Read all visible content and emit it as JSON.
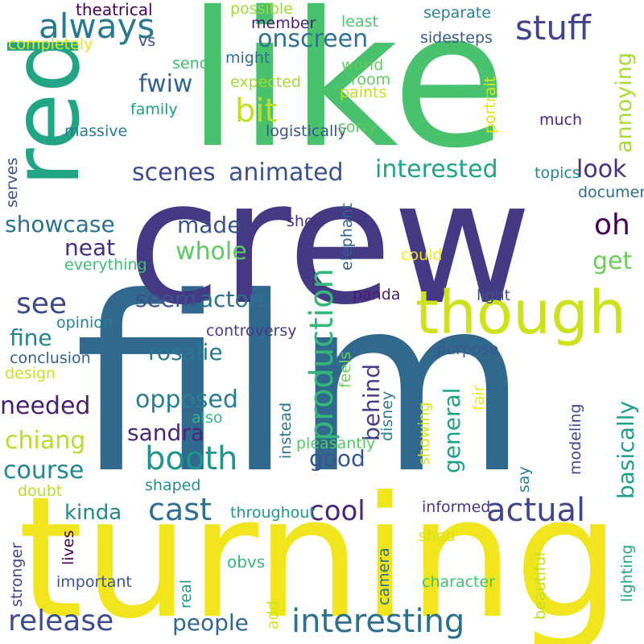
{
  "words": [
    {
      "text": "film",
      "color": "#31688e"
    },
    {
      "text": "crew",
      "color": "#443983"
    },
    {
      "text": "like",
      "color": "#4ac16d"
    },
    {
      "text": "turning",
      "color": "#f1e51d"
    },
    {
      "text": "red",
      "color": "#21a585"
    },
    {
      "text": "though",
      "color": "#cde11d"
    },
    {
      "text": "stuff",
      "color": "#414487"
    },
    {
      "text": "always",
      "color": "#2a788e"
    },
    {
      "text": "onscreen",
      "color": "#2c728e"
    },
    {
      "text": "bit",
      "color": "#bddf26"
    },
    {
      "text": "fwiw",
      "color": "#32648e"
    },
    {
      "text": "annoying",
      "color": "#a8db34"
    },
    {
      "text": "interested",
      "color": "#20a486"
    },
    {
      "text": "animated",
      "color": "#3b528b"
    },
    {
      "text": "scenes",
      "color": "#3e4a89"
    },
    {
      "text": "look",
      "color": "#46327e"
    },
    {
      "text": "oh",
      "color": "#440154"
    },
    {
      "text": "made",
      "color": "#3b528b"
    },
    {
      "text": "whole",
      "color": "#5ec962"
    },
    {
      "text": "showcase",
      "color": "#2c728e"
    },
    {
      "text": "neat",
      "color": "#472d7b"
    },
    {
      "text": "see",
      "color": "#3e4989"
    },
    {
      "text": "production",
      "color": "#35b779"
    },
    {
      "text": "get",
      "color": "#6ccd5a"
    },
    {
      "text": "seem",
      "color": "#3b528b"
    },
    {
      "text": "actors",
      "color": "#2c728e"
    },
    {
      "text": "fine",
      "color": "#26828e"
    },
    {
      "text": "rosalie",
      "color": "#2a788e"
    },
    {
      "text": "behind",
      "color": "#433e85"
    },
    {
      "text": "general",
      "color": "#1fa088"
    },
    {
      "text": "basically",
      "color": "#1f9e89"
    },
    {
      "text": "needed",
      "color": "#481f70"
    },
    {
      "text": "opposed",
      "color": "#287d8e"
    },
    {
      "text": "chiang",
      "color": "#b5de2b"
    },
    {
      "text": "sandra",
      "color": "#482576"
    },
    {
      "text": "booth",
      "color": "#1f958b"
    },
    {
      "text": "good",
      "color": "#39558c"
    },
    {
      "text": "course",
      "color": "#24878e"
    },
    {
      "text": "cast",
      "color": "#2e6e8e"
    },
    {
      "text": "cool",
      "color": "#482677"
    },
    {
      "text": "actual",
      "color": "#3f4788"
    },
    {
      "text": "kinda",
      "color": "#25848e"
    },
    {
      "text": "release",
      "color": "#3e4c8a"
    },
    {
      "text": "people",
      "color": "#31688e"
    },
    {
      "text": "interesting",
      "color": "#2d708e"
    },
    {
      "text": "theatrical",
      "color": "#450457"
    },
    {
      "text": "possible",
      "color": "#a0da39"
    },
    {
      "text": "member",
      "color": "#482173"
    },
    {
      "text": "least",
      "color": "#4ec36b"
    },
    {
      "text": "separate",
      "color": "#25838e"
    },
    {
      "text": "completely",
      "color": "#e5e419"
    },
    {
      "text": "vs",
      "color": "#3d4e8a"
    },
    {
      "text": "sidesteps",
      "color": "#375b8d"
    },
    {
      "text": "send",
      "color": "#42be71"
    },
    {
      "text": "might",
      "color": "#2d718e"
    },
    {
      "text": "world",
      "color": "#65cb5e"
    },
    {
      "text": "expected",
      "color": "#a2da37"
    },
    {
      "text": "room",
      "color": "#5cc863"
    },
    {
      "text": "paints",
      "color": "#c2df23"
    },
    {
      "text": "family",
      "color": "#1f9a8a"
    },
    {
      "text": "much",
      "color": "#482979"
    },
    {
      "text": "massive",
      "color": "#287d8e"
    },
    {
      "text": "logistically",
      "color": "#3a548c"
    },
    {
      "text": "sorry",
      "color": "#5ac864"
    },
    {
      "text": "topics",
      "color": "#25858e"
    },
    {
      "text": "documentary",
      "color": "#2e6e8e"
    },
    {
      "text": "show",
      "color": "#46327e"
    },
    {
      "text": "could",
      "color": "#f4e61e"
    },
    {
      "text": "everything",
      "color": "#3dbc74"
    },
    {
      "text": "light",
      "color": "#3b528b"
    },
    {
      "text": "panda",
      "color": "#481b6d"
    },
    {
      "text": "opinion",
      "color": "#26828e"
    },
    {
      "text": "controversy",
      "color": "#433d84"
    },
    {
      "text": "purpose",
      "color": "#38588c"
    },
    {
      "text": "conclusion",
      "color": "#34618d"
    },
    {
      "text": "design",
      "color": "#c8e020"
    },
    {
      "text": "also",
      "color": "#35b779"
    },
    {
      "text": "pleasantly",
      "color": "#56c667"
    },
    {
      "text": "doubt",
      "color": "#b8de29"
    },
    {
      "text": "shaped",
      "color": "#228d8d"
    },
    {
      "text": "throughout",
      "color": "#1f998a"
    },
    {
      "text": "informed",
      "color": "#453882"
    },
    {
      "text": "shed",
      "color": "#d8e219"
    },
    {
      "text": "obvs",
      "color": "#37b878"
    },
    {
      "text": "important",
      "color": "#3a538b"
    },
    {
      "text": "character",
      "color": "#43bf71"
    },
    {
      "text": "serves",
      "color": "#3e4a89"
    },
    {
      "text": "portrait",
      "color": "#dfe318"
    },
    {
      "text": "elephant",
      "color": "#33628d"
    },
    {
      "text": "feels",
      "color": "#6ece58"
    },
    {
      "text": "instead",
      "color": "#2a768e"
    },
    {
      "text": "disney",
      "color": "#297a8e"
    },
    {
      "text": "fair",
      "color": "#f1e51d"
    },
    {
      "text": "say",
      "color": "#26828e"
    },
    {
      "text": "showing",
      "color": "#d5e21a"
    },
    {
      "text": "modeling",
      "color": "#3f4889"
    },
    {
      "text": "lives",
      "color": "#440154"
    },
    {
      "text": "stronger",
      "color": "#3e4c8a"
    },
    {
      "text": "real",
      "color": "#1f9e89"
    },
    {
      "text": "camera",
      "color": "#2c728e"
    },
    {
      "text": "add",
      "color": "#d2e21b"
    },
    {
      "text": "beautiful",
      "color": "#c0df25"
    },
    {
      "text": "lighting",
      "color": "#22a785"
    }
  ]
}
